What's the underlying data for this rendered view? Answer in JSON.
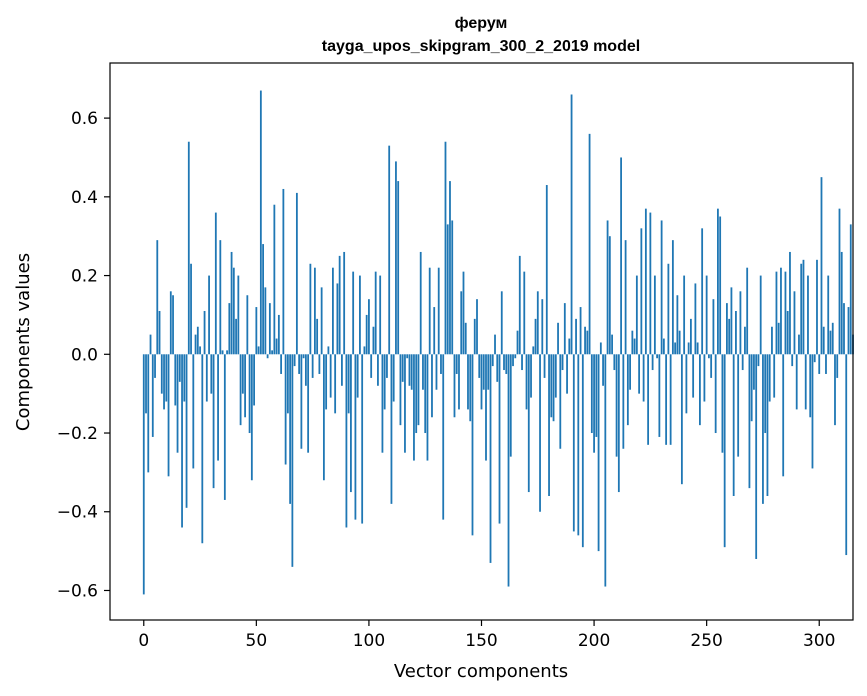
{
  "chart_data": {
    "type": "bar",
    "title": "ферум",
    "subtitle": "tayga_upos_skipgram_300_2_2019 model",
    "xlabel": "Vector components",
    "ylabel": "Components values",
    "xlim": [
      -15,
      315
    ],
    "ylim": [
      -0.675,
      0.74
    ],
    "x_ticks": [
      0,
      50,
      100,
      150,
      200,
      250,
      300
    ],
    "y_ticks": [
      -0.6,
      -0.4,
      -0.2,
      0.0,
      0.2,
      0.4,
      0.6
    ],
    "y_tick_labels": [
      "−0.6",
      "−0.4",
      "−0.2",
      "0.0",
      "0.2",
      "0.4",
      "0.6"
    ],
    "bar_color": "#1f77b4",
    "grid": false,
    "legend": "none",
    "values": [
      -0.61,
      -0.15,
      -0.3,
      0.05,
      -0.21,
      -0.06,
      0.29,
      0.11,
      -0.1,
      -0.14,
      -0.12,
      -0.31,
      0.16,
      0.15,
      -0.13,
      -0.25,
      -0.07,
      -0.44,
      -0.12,
      -0.39,
      0.54,
      0.23,
      -0.29,
      0.05,
      0.07,
      0.02,
      -0.48,
      0.11,
      -0.12,
      0.2,
      -0.1,
      -0.34,
      0.36,
      -0.27,
      0.29,
      0.01,
      -0.37,
      0.01,
      0.13,
      0.26,
      0.22,
      0.09,
      0.2,
      -0.18,
      -0.1,
      -0.16,
      0.15,
      -0.2,
      -0.32,
      -0.13,
      0.12,
      0.02,
      0.67,
      0.28,
      0.17,
      -0.01,
      0.13,
      0.01,
      0.38,
      0.04,
      0.1,
      -0.05,
      0.42,
      -0.28,
      -0.15,
      -0.38,
      -0.54,
      -0.03,
      0.41,
      -0.05,
      -0.24,
      -0.01,
      -0.08,
      -0.25,
      0.23,
      -0.06,
      0.22,
      0.09,
      -0.05,
      0.17,
      -0.32,
      -0.14,
      0.02,
      -0.11,
      0.22,
      -0.15,
      0.18,
      0.25,
      -0.08,
      0.26,
      -0.44,
      -0.15,
      -0.35,
      0.21,
      -0.42,
      -0.11,
      0.2,
      -0.43,
      0.02,
      0.1,
      0.14,
      -0.06,
      0.07,
      0.21,
      -0.08,
      0.2,
      -0.25,
      -0.14,
      -0.06,
      0.53,
      -0.38,
      -0.12,
      0.49,
      0.44,
      -0.18,
      -0.07,
      -0.25,
      -0.01,
      -0.08,
      -0.09,
      -0.27,
      -0.2,
      -0.18,
      0.26,
      -0.09,
      -0.2,
      -0.27,
      0.22,
      -0.16,
      0.12,
      -0.09,
      0.22,
      -0.05,
      -0.42,
      0.54,
      0.33,
      0.44,
      0.34,
      -0.16,
      -0.05,
      -0.14,
      0.16,
      0.21,
      0.08,
      -0.14,
      -0.17,
      -0.46,
      0.09,
      0.14,
      -0.06,
      -0.14,
      -0.09,
      -0.27,
      -0.09,
      -0.53,
      -0.03,
      0.05,
      -0.07,
      -0.43,
      0.16,
      -0.04,
      -0.05,
      -0.59,
      -0.26,
      -0.03,
      -0.01,
      0.06,
      0.25,
      -0.04,
      0.21,
      -0.14,
      -0.35,
      -0.11,
      0.02,
      0.09,
      0.16,
      -0.4,
      0.14,
      -0.06,
      0.43,
      -0.36,
      -0.16,
      -0.17,
      -0.11,
      0.08,
      -0.24,
      -0.04,
      0.13,
      -0.1,
      0.04,
      0.66,
      -0.45,
      0.09,
      -0.46,
      0.12,
      -0.49,
      0.07,
      0.06,
      0.56,
      -0.2,
      -0.25,
      -0.21,
      -0.5,
      0.03,
      -0.08,
      -0.59,
      0.34,
      0.3,
      0.05,
      -0.04,
      -0.26,
      -0.35,
      0.5,
      -0.24,
      0.29,
      -0.18,
      -0.09,
      0.06,
      0.04,
      0.2,
      -0.1,
      0.32,
      -0.12,
      0.37,
      -0.23,
      0.36,
      -0.04,
      0.2,
      -0.01,
      -0.21,
      0.34,
      0.04,
      -0.23,
      0.23,
      -0.23,
      0.29,
      0.03,
      0.15,
      0.06,
      -0.33,
      0.2,
      -0.15,
      0.03,
      0.09,
      -0.11,
      0.18,
      0.03,
      -0.18,
      0.32,
      -0.12,
      0.2,
      -0.01,
      -0.06,
      0.14,
      -0.2,
      0.37,
      0.35,
      -0.25,
      -0.49,
      0.13,
      0.09,
      0.17,
      -0.36,
      0.11,
      -0.26,
      0.16,
      -0.04,
      0.07,
      0.22,
      -0.34,
      -0.17,
      -0.09,
      -0.52,
      -0.03,
      0.2,
      -0.38,
      -0.2,
      -0.36,
      -0.12,
      0.07,
      -0.11,
      0.21,
      0.08,
      0.22,
      -0.31,
      0.21,
      0.11,
      0.26,
      -0.03,
      0.16,
      -0.14,
      0.05,
      0.23,
      0.24,
      -0.14,
      0.2,
      -0.16,
      -0.29,
      -0.02,
      0.24,
      -0.05,
      0.45,
      0.07,
      -0.05,
      0.2,
      0.06,
      0.08,
      -0.18,
      -0.06,
      0.37,
      0.26,
      0.13,
      -0.51,
      0.12,
      0.33,
      0.05
    ]
  }
}
